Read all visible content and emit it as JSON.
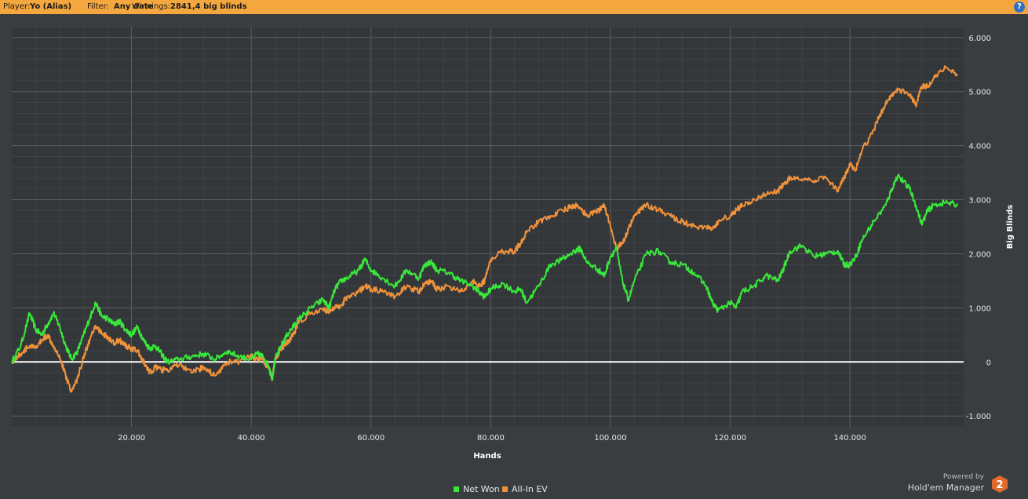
{
  "header": {
    "player_label": "Player:",
    "player_value": "Yo (Alias)",
    "filter_label": "Filter:",
    "filter_value": "Any date",
    "winnings_label": "Winnings:",
    "winnings_value": "2841,4 big blinds",
    "help_icon": "question-icon",
    "help_glyph": "?"
  },
  "branding": {
    "powered_by": "Powered by",
    "product_name": "Hold'em Manager",
    "badge_text": "2",
    "badge_color": "#e06a2c"
  },
  "colors": {
    "background": "#3a3d40",
    "header_bar": "#f3a73e",
    "net_won": "#39e83b",
    "all_in_ev": "#f0923c",
    "zero_line": "#ffffff",
    "grid": "#5a5d61"
  },
  "chart_data": {
    "type": "line",
    "title": "",
    "xlabel": "Hands",
    "ylabel": "Big Blinds",
    "xlim": [
      0,
      159000
    ],
    "ylim": [
      -1200,
      6200
    ],
    "x_ticks": [
      20000,
      40000,
      60000,
      80000,
      100000,
      120000,
      140000
    ],
    "x_tick_labels": [
      "20.000",
      "40.000",
      "60.000",
      "80.000",
      "100.000",
      "120.000",
      "140.000"
    ],
    "y_ticks": [
      -1000,
      0,
      1000,
      2000,
      3000,
      4000,
      5000,
      6000
    ],
    "y_tick_labels": [
      "-1.000",
      "0",
      "1.000",
      "2.000",
      "3.000",
      "4.000",
      "5.000",
      "6.000"
    ],
    "y_axis_side": "right",
    "grid": true,
    "legend_position": "bottom-center",
    "series": [
      {
        "name": "Net Won",
        "color": "#39e83b",
        "x": [
          0,
          1500,
          3000,
          4000,
          5000,
          6000,
          7000,
          8000,
          9000,
          10000,
          11000,
          12000,
          13000,
          14000,
          15000,
          16000,
          17000,
          18000,
          19000,
          20000,
          21000,
          22000,
          23000,
          24000,
          25000,
          26000,
          28000,
          30000,
          32000,
          34000,
          36000,
          38000,
          40000,
          41000,
          42000,
          43000,
          43500,
          44000,
          45000,
          46000,
          47000,
          48000,
          50000,
          52000,
          53000,
          54000,
          55000,
          56000,
          58000,
          59000,
          60000,
          62000,
          64000,
          66000,
          68000,
          69000,
          70000,
          71000,
          73000,
          75000,
          77000,
          78000,
          79000,
          80000,
          82000,
          84000,
          85000,
          86000,
          88000,
          90000,
          92000,
          94000,
          95000,
          96000,
          98000,
          99000,
          100000,
          101000,
          102000,
          103000,
          104000,
          106000,
          108000,
          110000,
          112000,
          114000,
          116000,
          117000,
          118000,
          120000,
          121000,
          122000,
          124000,
          126000,
          128000,
          129000,
          130000,
          132000,
          134000,
          136000,
          138000,
          139000,
          140000,
          141000,
          142000,
          144000,
          146000,
          147000,
          148000,
          150000,
          151000,
          152000,
          153000,
          154000,
          156000,
          158000
        ],
        "values": [
          0,
          300,
          900,
          600,
          500,
          700,
          900,
          650,
          300,
          50,
          200,
          500,
          800,
          1100,
          850,
          800,
          700,
          750,
          600,
          500,
          650,
          400,
          250,
          300,
          150,
          0,
          50,
          100,
          150,
          50,
          200,
          100,
          50,
          150,
          100,
          -100,
          -300,
          50,
          300,
          500,
          650,
          800,
          1000,
          1150,
          1000,
          1350,
          1500,
          1550,
          1700,
          1900,
          1700,
          1550,
          1400,
          1700,
          1550,
          1800,
          1850,
          1700,
          1650,
          1500,
          1400,
          1300,
          1200,
          1350,
          1450,
          1300,
          1350,
          1100,
          1400,
          1800,
          1900,
          2050,
          2100,
          1850,
          1700,
          1600,
          1950,
          2100,
          1500,
          1150,
          1500,
          2000,
          2050,
          1850,
          1800,
          1650,
          1400,
          1100,
          950,
          1100,
          1000,
          1300,
          1400,
          1600,
          1500,
          1750,
          2050,
          2150,
          1950,
          2000,
          2050,
          1800,
          1800,
          1950,
          2250,
          2600,
          2900,
          3200,
          3450,
          3200,
          2900,
          2550,
          2800,
          2900,
          2950,
          2900
        ]
      },
      {
        "name": "All-In EV",
        "color": "#f0923c",
        "x": [
          0,
          1500,
          3000,
          4000,
          5000,
          6000,
          7000,
          8000,
          9000,
          10000,
          11000,
          12000,
          13000,
          14000,
          15000,
          16000,
          17000,
          18000,
          19000,
          20000,
          21000,
          22000,
          23000,
          24000,
          25000,
          26000,
          28000,
          30000,
          32000,
          34000,
          36000,
          38000,
          40000,
          41000,
          42000,
          43000,
          43500,
          44000,
          45000,
          46000,
          47000,
          48000,
          50000,
          52000,
          53000,
          54000,
          55000,
          56000,
          58000,
          59000,
          60000,
          62000,
          64000,
          66000,
          68000,
          69000,
          70000,
          71000,
          73000,
          75000,
          77000,
          78000,
          79000,
          80000,
          82000,
          84000,
          85000,
          86000,
          88000,
          90000,
          92000,
          94000,
          95000,
          96000,
          98000,
          99000,
          100000,
          101000,
          102000,
          103000,
          104000,
          106000,
          108000,
          110000,
          112000,
          114000,
          116000,
          117000,
          118000,
          120000,
          121000,
          122000,
          124000,
          126000,
          128000,
          129000,
          130000,
          132000,
          134000,
          136000,
          138000,
          139000,
          140000,
          141000,
          142000,
          144000,
          146000,
          147000,
          148000,
          150000,
          151000,
          152000,
          153000,
          154000,
          156000,
          158000
        ],
        "values": [
          0,
          150,
          300,
          250,
          400,
          500,
          300,
          100,
          -250,
          -550,
          -300,
          100,
          400,
          650,
          550,
          450,
          350,
          400,
          300,
          250,
          200,
          0,
          -200,
          -100,
          -150,
          -150,
          -50,
          -200,
          -100,
          -250,
          0,
          0,
          100,
          50,
          50,
          -150,
          -300,
          50,
          250,
          350,
          500,
          750,
          900,
          950,
          950,
          1000,
          1050,
          1200,
          1300,
          1400,
          1350,
          1300,
          1200,
          1400,
          1300,
          1450,
          1500,
          1350,
          1400,
          1300,
          1500,
          1400,
          1500,
          1900,
          2050,
          2050,
          2200,
          2400,
          2600,
          2700,
          2800,
          2900,
          2850,
          2700,
          2800,
          2900,
          2500,
          2100,
          2200,
          2450,
          2700,
          2900,
          2800,
          2700,
          2600,
          2500,
          2500,
          2450,
          2600,
          2700,
          2800,
          2900,
          3000,
          3100,
          3150,
          3300,
          3400,
          3350,
          3350,
          3400,
          3150,
          3400,
          3650,
          3550,
          3900,
          4300,
          4800,
          4950,
          5050,
          4950,
          4750,
          5100,
          5100,
          5250,
          5450,
          5300
        ]
      }
    ]
  }
}
